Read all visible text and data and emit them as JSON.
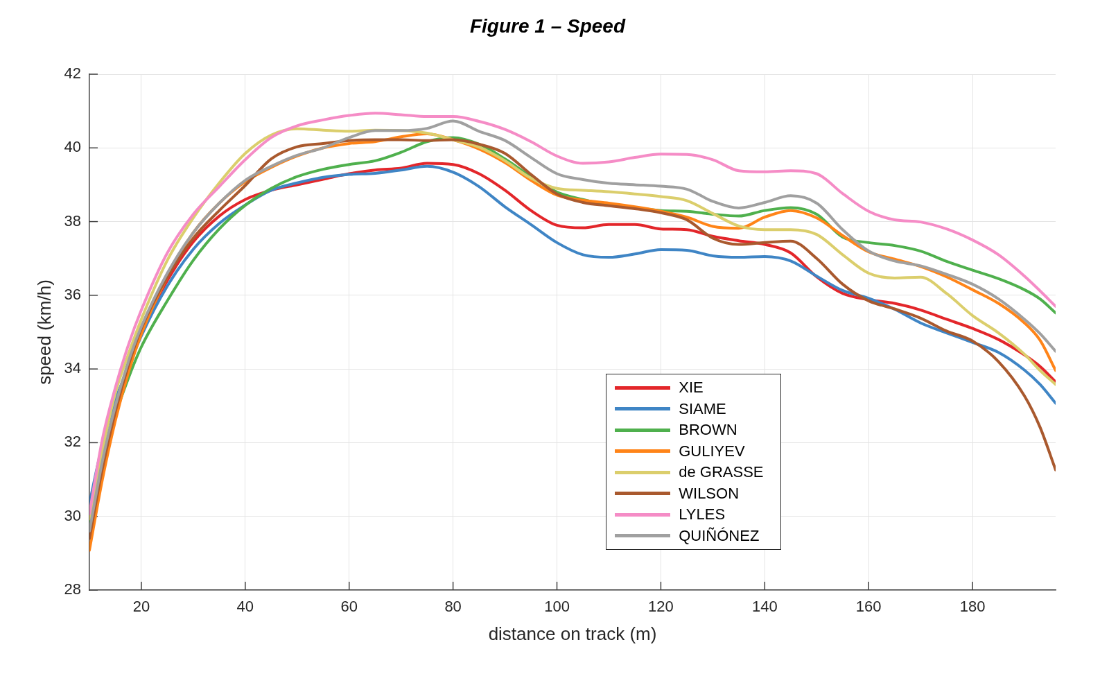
{
  "chart_data": {
    "type": "line",
    "title": "Figure 1 – Speed",
    "xlabel": "distance on track (m)",
    "ylabel": "speed (km/h)",
    "x": [
      10,
      12.5,
      15,
      17.5,
      20,
      25,
      30,
      35,
      40,
      45,
      50,
      55,
      60,
      65,
      70,
      75,
      80,
      85,
      90,
      95,
      100,
      105,
      110,
      115,
      120,
      125,
      130,
      135,
      140,
      145,
      150,
      155,
      160,
      165,
      170,
      175,
      180,
      185,
      190,
      193,
      196
    ],
    "series": [
      {
        "name": "XIE",
        "color": "#e3262a",
        "values": [
          29.5,
          31.35,
          32.85,
          34.05,
          35.0,
          36.4,
          37.45,
          38.15,
          38.6,
          38.85,
          39.0,
          39.15,
          39.3,
          39.4,
          39.45,
          39.58,
          39.55,
          39.3,
          38.85,
          38.3,
          37.9,
          37.83,
          37.92,
          37.92,
          37.8,
          37.78,
          37.6,
          37.48,
          37.38,
          37.15,
          36.5,
          36.05,
          35.88,
          35.78,
          35.6,
          35.35,
          35.1,
          34.8,
          34.38,
          34.07,
          33.65
        ]
      },
      {
        "name": "SIAME",
        "color": "#3f85c5",
        "values": [
          30.35,
          31.95,
          33.15,
          34.05,
          34.9,
          36.25,
          37.25,
          37.95,
          38.45,
          38.85,
          39.05,
          39.2,
          39.28,
          39.31,
          39.4,
          39.5,
          39.34,
          38.95,
          38.4,
          37.92,
          37.43,
          37.1,
          37.03,
          37.12,
          37.24,
          37.22,
          37.07,
          37.03,
          37.05,
          36.93,
          36.52,
          36.13,
          35.92,
          35.62,
          35.25,
          34.98,
          34.72,
          34.45,
          33.97,
          33.58,
          33.07
        ]
      },
      {
        "name": "BROWN",
        "color": "#4fb04d",
        "values": [
          29.85,
          31.45,
          32.75,
          33.75,
          34.6,
          35.85,
          36.95,
          37.8,
          38.44,
          38.9,
          39.22,
          39.42,
          39.55,
          39.65,
          39.88,
          40.17,
          40.28,
          40.1,
          39.7,
          39.22,
          38.8,
          38.6,
          38.45,
          38.38,
          38.3,
          38.28,
          38.2,
          38.15,
          38.3,
          38.38,
          38.2,
          37.58,
          37.43,
          37.35,
          37.2,
          36.92,
          36.68,
          36.45,
          36.15,
          35.9,
          35.52
        ]
      },
      {
        "name": "GULIYEV",
        "color": "#ff8418",
        "values": [
          29.08,
          31.0,
          32.6,
          33.9,
          34.95,
          36.5,
          37.7,
          38.5,
          39.08,
          39.47,
          39.78,
          40.0,
          40.12,
          40.17,
          40.3,
          40.38,
          40.22,
          39.97,
          39.6,
          39.12,
          38.72,
          38.58,
          38.5,
          38.4,
          38.28,
          38.12,
          37.87,
          37.82,
          38.12,
          38.3,
          38.1,
          37.62,
          37.18,
          36.98,
          36.78,
          36.5,
          36.15,
          35.78,
          35.25,
          34.78,
          33.96
        ]
      },
      {
        "name": "de GRASSE",
        "color": "#dbce6c",
        "values": [
          29.93,
          31.8,
          33.35,
          34.4,
          35.35,
          36.95,
          38.1,
          39.05,
          39.85,
          40.35,
          40.52,
          40.48,
          40.45,
          40.48,
          40.47,
          40.4,
          40.22,
          40.02,
          39.65,
          39.18,
          38.9,
          38.85,
          38.81,
          38.75,
          38.68,
          38.57,
          38.22,
          37.88,
          37.78,
          37.78,
          37.65,
          37.1,
          36.6,
          36.47,
          36.49,
          36.05,
          35.45,
          34.98,
          34.4,
          33.96,
          33.58
        ]
      },
      {
        "name": "WILSON",
        "color": "#a9592e",
        "values": [
          29.4,
          31.3,
          32.85,
          34.1,
          35.1,
          36.5,
          37.55,
          38.3,
          38.98,
          39.7,
          40.03,
          40.12,
          40.2,
          40.22,
          40.22,
          40.2,
          40.22,
          40.1,
          39.85,
          39.28,
          38.75,
          38.52,
          38.43,
          38.35,
          38.24,
          38.05,
          37.55,
          37.38,
          37.43,
          37.47,
          37.0,
          36.3,
          35.85,
          35.63,
          35.38,
          35.03,
          34.76,
          34.2,
          33.27,
          32.42,
          31.26
        ]
      },
      {
        "name": "LYLES",
        "color": "#f58cc6",
        "values": [
          30.07,
          32.1,
          33.5,
          34.65,
          35.6,
          37.15,
          38.2,
          38.95,
          39.68,
          40.28,
          40.6,
          40.76,
          40.88,
          40.94,
          40.9,
          40.85,
          40.85,
          40.72,
          40.5,
          40.17,
          39.78,
          39.58,
          39.62,
          39.74,
          39.83,
          39.82,
          39.68,
          39.38,
          39.35,
          39.38,
          39.3,
          38.76,
          38.28,
          38.05,
          37.99,
          37.8,
          37.5,
          37.1,
          36.52,
          36.12,
          35.7
        ]
      },
      {
        "name": "QUIÑÓNEZ",
        "color": "#a0a0a0",
        "values": [
          29.6,
          31.5,
          33.0,
          34.2,
          35.15,
          36.6,
          37.7,
          38.5,
          39.12,
          39.5,
          39.8,
          40.0,
          40.28,
          40.47,
          40.47,
          40.53,
          40.73,
          40.45,
          40.2,
          39.74,
          39.3,
          39.14,
          39.04,
          39.0,
          38.96,
          38.88,
          38.55,
          38.37,
          38.52,
          38.7,
          38.5,
          37.78,
          37.2,
          36.93,
          36.8,
          36.57,
          36.3,
          35.9,
          35.35,
          34.96,
          34.48
        ]
      }
    ],
    "xlim": [
      10,
      196
    ],
    "ylim": [
      28,
      42
    ],
    "xticks": [
      20,
      40,
      60,
      80,
      100,
      120,
      140,
      160,
      180
    ],
    "yticks": [
      28,
      30,
      32,
      34,
      36,
      38,
      40,
      42
    ],
    "grid": true,
    "legend": "bottom"
  }
}
